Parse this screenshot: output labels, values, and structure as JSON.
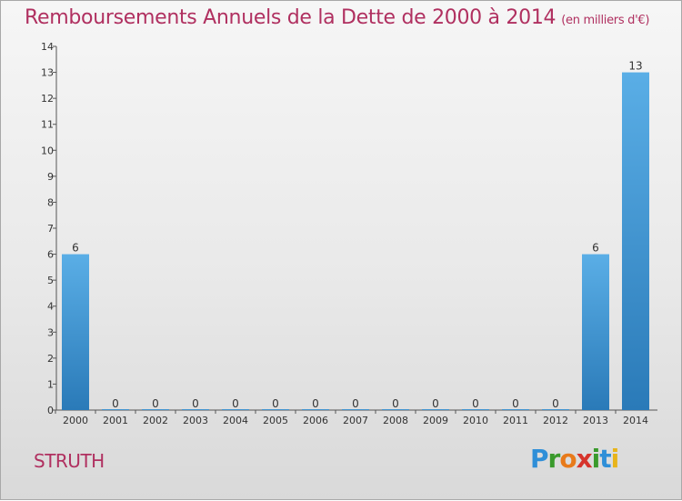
{
  "header": {
    "title": "Remboursements Annuels de la Dette de 2000 à 2014",
    "unit": "(en milliers d'€)"
  },
  "footer": {
    "commune": "STRUTH",
    "logo_letters": [
      "P",
      "r",
      "o",
      "x",
      "i",
      "t",
      "i"
    ],
    "logo_colors": [
      "#2f8fd8",
      "#3a9a2c",
      "#e87a1a",
      "#d6342c",
      "#3a9a2c",
      "#2f8fd8",
      "#e8b41a"
    ]
  },
  "colors": {
    "bar_top": "#5aaee6",
    "bar_bottom": "#2a7ab8",
    "text": "#333333",
    "title": "#b03060"
  },
  "chart_data": {
    "type": "bar",
    "title": "Remboursements Annuels de la Dette de 2000 à 2014",
    "xlabel": "",
    "ylabel": "",
    "categories": [
      "2000",
      "2001",
      "2002",
      "2003",
      "2004",
      "2005",
      "2006",
      "2007",
      "2008",
      "2009",
      "2010",
      "2011",
      "2012",
      "2013",
      "2014"
    ],
    "values": [
      6,
      0,
      0,
      0,
      0,
      0,
      0,
      0,
      0,
      0,
      0,
      0,
      0,
      6,
      13
    ],
    "ylim": [
      0,
      14
    ],
    "yticks": [
      0,
      1,
      2,
      3,
      4,
      5,
      6,
      7,
      8,
      9,
      10,
      11,
      12,
      13,
      14
    ],
    "grid": false
  }
}
